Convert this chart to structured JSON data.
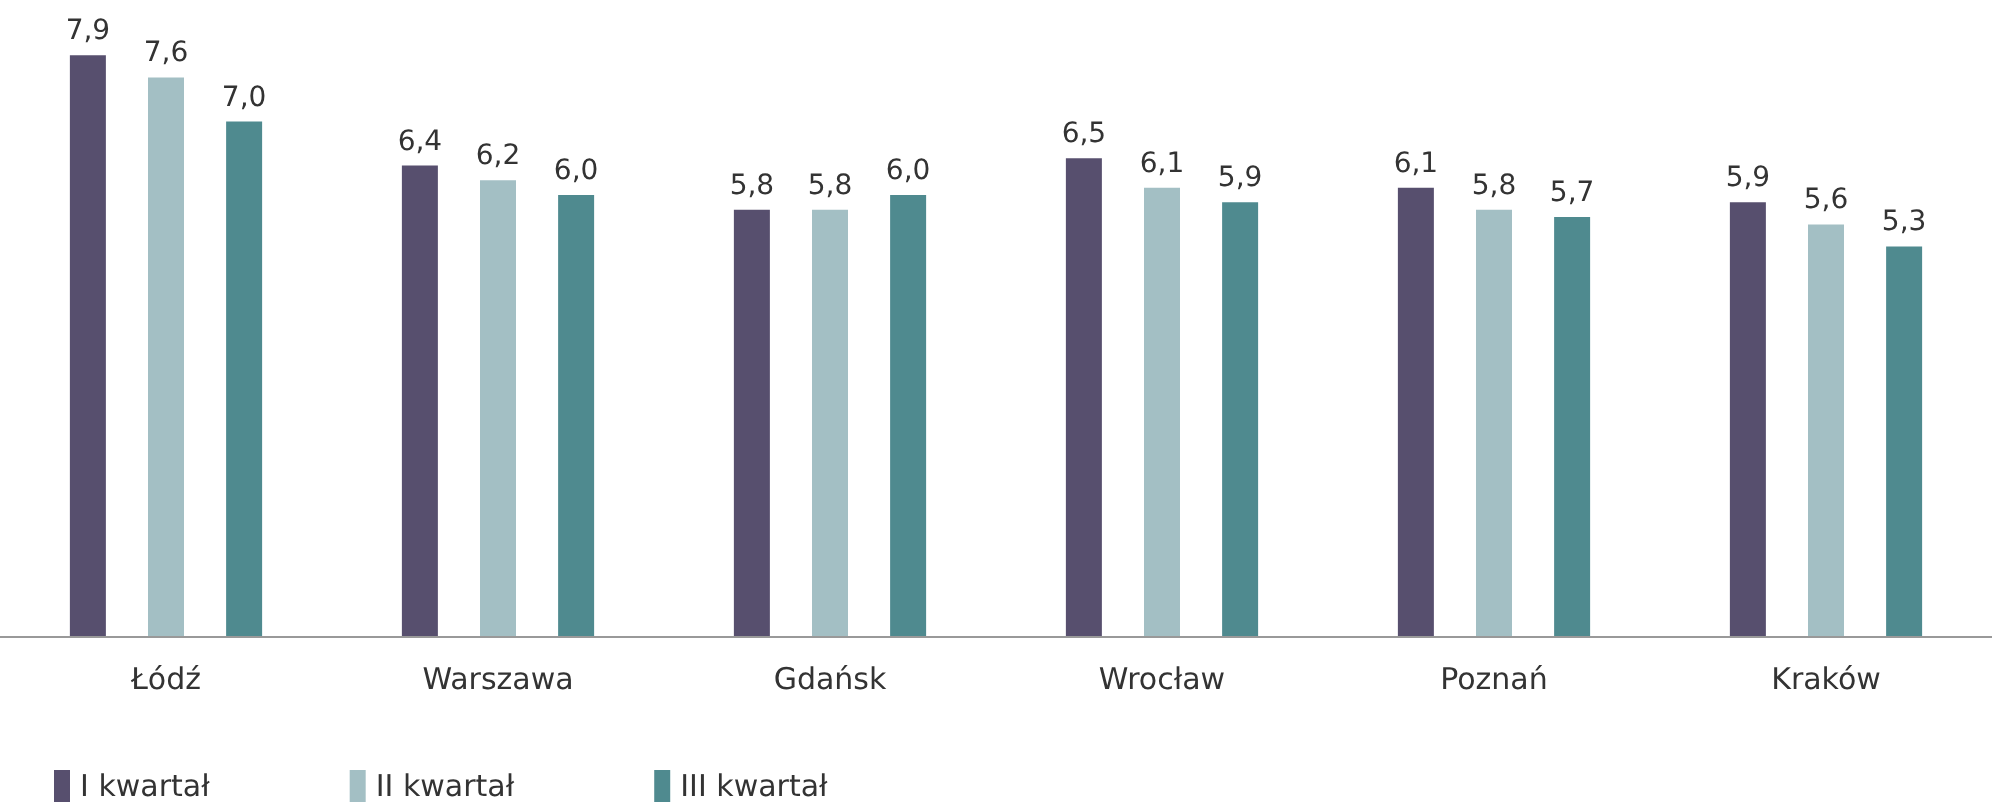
{
  "chart_data": {
    "type": "bar",
    "categories": [
      "Łódź",
      "Warszawa",
      "Gdańsk",
      "Wrocław",
      "Poznań",
      "Kraków"
    ],
    "series": [
      {
        "name": "I kwartał",
        "color": "#574f6e",
        "values": [
          7.9,
          6.4,
          5.8,
          6.5,
          6.1,
          5.9
        ],
        "value_labels": [
          "7,9",
          "6,4",
          "5,8",
          "6,5",
          "6,1",
          "5,9"
        ]
      },
      {
        "name": "II kwartał",
        "color": "#a3bfc4",
        "values": [
          7.6,
          6.2,
          5.8,
          6.1,
          5.8,
          5.6
        ],
        "value_labels": [
          "7,6",
          "6,2",
          "5,8",
          "6,1",
          "5,8",
          "5,6"
        ]
      },
      {
        "name": "III kwartał",
        "color": "#4f8a8f",
        "values": [
          7.0,
          6.0,
          6.0,
          5.9,
          5.7,
          5.3
        ],
        "value_labels": [
          "7,0",
          "6,0",
          "6,0",
          "5,9",
          "5,7",
          "5,3"
        ]
      }
    ],
    "tick_labels": "x",
    "grid": false,
    "legend": "bottom left"
  }
}
